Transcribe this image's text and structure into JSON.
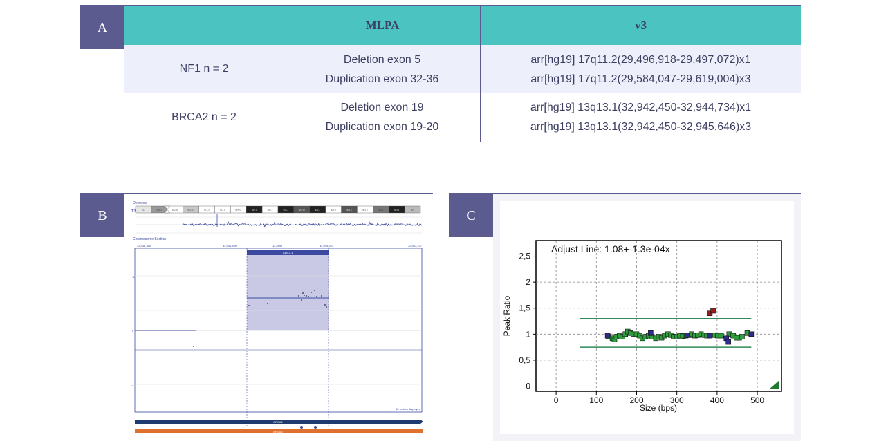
{
  "panel_a": {
    "label": "A",
    "headers": [
      "",
      "MLPA",
      "v3"
    ],
    "rows": [
      {
        "gene": "NF1 n = 2",
        "mlpa": [
          "Deletion exon 5",
          "Duplication exon 32-36"
        ],
        "v3": [
          "arr[hg19] 17q11.2(29,496,918-29,497,072)x1",
          "arr[hg19] 17q11.2(29,584,047-29,619,004)x3"
        ]
      },
      {
        "gene": "BRCA2 n = 2",
        "mlpa": [
          "Deletion exon 19",
          "Duplication exon 19-20"
        ],
        "v3": [
          "arr[hg19] 13q13.1(32,942,450-32,944,734)x1",
          "arr[hg19] 13q13.1(32,942,450-32,945,646)x3"
        ]
      }
    ]
  },
  "panel_b": {
    "label": "B",
    "overview_label": "Overview",
    "chromosome_label": "13",
    "band_labels": [
      "p13",
      "p11.2",
      "q12.11",
      "q12.13",
      "q12.3",
      "q13.1",
      "q14.11",
      "q14.2",
      "q21.1",
      "q21.2",
      "q21.32",
      "q22.1",
      "q22.3",
      "q31.1",
      "q31.3",
      "q32.1",
      "q33.1",
      "q34"
    ],
    "section_label": "Chromosome Section",
    "coords": [
      "32,938,380",
      "32,941,859",
      "11,289b",
      "32,945,623",
      "32,943,237"
    ],
    "region_label": "13q13.1",
    "yticks": [
      "+1",
      "0",
      "-1"
    ],
    "probes_displayed": "15 probes displayed",
    "gene_track_1": "BRCA2",
    "gene_track_2": "BRCA2",
    "colors": {
      "region": "#c9c9e6",
      "trace": "#3b4aa0",
      "gene1": "#1e3a6e",
      "gene2": "#e07030"
    }
  },
  "panel_c": {
    "label": "C",
    "chart_data": {
      "type": "scatter",
      "title": "Adjust Line: 1.08+-1.3e-04x",
      "xlabel": "Size (bps)",
      "ylabel": "Peak Ratio",
      "xlim": [
        -50,
        560
      ],
      "ylim": [
        -0.1,
        2.8
      ],
      "xticks": [
        0,
        100,
        200,
        300,
        400,
        500
      ],
      "xtick_labels": [
        "0",
        "100",
        "200",
        "300",
        "400",
        "500"
      ],
      "yticks": [
        0,
        0.5,
        1,
        1.5,
        2,
        2.5
      ],
      "ytick_labels": [
        "0",
        "0,5",
        "1",
        "1,5",
        "2",
        "2,5"
      ],
      "grid": true,
      "thresholds": [
        {
          "name": "",
          "y": 1.3,
          "x": [
            60,
            485
          ]
        },
        {
          "name": "",
          "y": 0.75,
          "x": [
            60,
            485
          ]
        }
      ],
      "series": [
        {
          "color": "#2e9e3e",
          "points": [
            [
              130,
              0.95
            ],
            [
              140,
              0.92
            ],
            [
              145,
              0.9
            ],
            [
              150,
              0.95
            ],
            [
              158,
              0.97
            ],
            [
              165,
              0.95
            ],
            [
              172,
              1.0
            ],
            [
              178,
              1.05
            ],
            [
              185,
              1.02
            ],
            [
              192,
              1.0
            ],
            [
              200,
              1.0
            ],
            [
              208,
              0.97
            ],
            [
              215,
              0.92
            ],
            [
              222,
              0.95
            ],
            [
              230,
              0.97
            ],
            [
              238,
              0.95
            ],
            [
              248,
              0.92
            ],
            [
              255,
              0.95
            ],
            [
              262,
              0.93
            ],
            [
              270,
              0.97
            ],
            [
              278,
              1.0
            ],
            [
              285,
              0.98
            ],
            [
              292,
              0.95
            ],
            [
              300,
              0.95
            ],
            [
              308,
              0.97
            ],
            [
              315,
              0.96
            ],
            [
              322,
              0.97
            ],
            [
              330,
              0.98
            ],
            [
              337,
              1.0
            ],
            [
              345,
              0.97
            ],
            [
              352,
              0.98
            ],
            [
              360,
              1.0
            ],
            [
              368,
              0.98
            ],
            [
              375,
              0.97
            ],
            [
              395,
              0.98
            ],
            [
              402,
              0.97
            ],
            [
              410,
              0.97
            ],
            [
              430,
              1.0
            ],
            [
              440,
              0.97
            ],
            [
              448,
              0.93
            ],
            [
              455,
              0.93
            ],
            [
              462,
              0.95
            ],
            [
              475,
              1.02
            ]
          ]
        },
        {
          "color": "#2e2e8a",
          "points": [
            [
              128,
              0.97
            ],
            [
              235,
              1.02
            ],
            [
              325,
              0.98
            ],
            [
              382,
              0.97
            ],
            [
              423,
              0.92
            ],
            [
              428,
              0.85
            ],
            [
              485,
              1.0
            ]
          ]
        },
        {
          "color": "#9a2020",
          "points": [
            [
              382,
              1.4
            ],
            [
              390,
              1.45
            ]
          ]
        }
      ]
    }
  }
}
